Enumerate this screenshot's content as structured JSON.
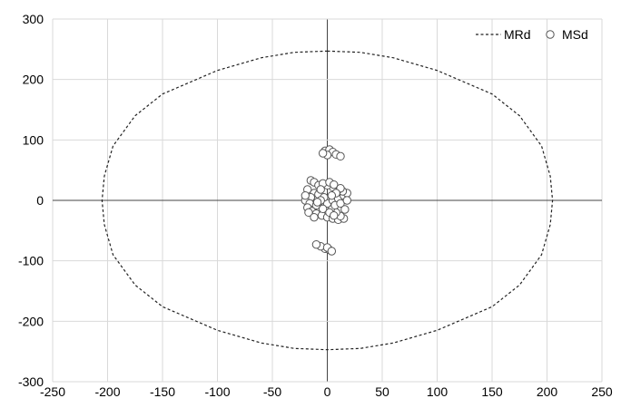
{
  "chart_data": {
    "type": "scatter",
    "title": "",
    "xlabel": "",
    "ylabel": "",
    "xlim": [
      -250,
      250
    ],
    "ylim": [
      -300,
      300
    ],
    "x_ticks": [
      -250,
      -200,
      -150,
      -100,
      -50,
      0,
      50,
      100,
      150,
      200,
      250
    ],
    "y_ticks": [
      -300,
      -200,
      -100,
      0,
      100,
      200,
      300
    ],
    "grid": true,
    "legend_position": "top-right",
    "series": [
      {
        "name": "MRd",
        "style": "dashed-line",
        "color": "#222222",
        "points": [
          [
            0,
            247
          ],
          [
            30,
            245
          ],
          [
            60,
            236
          ],
          [
            100,
            215
          ],
          [
            150,
            176
          ],
          [
            175,
            140
          ],
          [
            195,
            90
          ],
          [
            203,
            40
          ],
          [
            205,
            0
          ],
          [
            203,
            -40
          ],
          [
            195,
            -90
          ],
          [
            175,
            -140
          ],
          [
            150,
            -176
          ],
          [
            100,
            -215
          ],
          [
            60,
            -236
          ],
          [
            30,
            -245
          ],
          [
            0,
            -247
          ],
          [
            -30,
            -245
          ],
          [
            -60,
            -236
          ],
          [
            -100,
            -215
          ],
          [
            -150,
            -176
          ],
          [
            -175,
            -140
          ],
          [
            -195,
            -90
          ],
          [
            -203,
            -40
          ],
          [
            -205,
            0
          ],
          [
            -203,
            40
          ],
          [
            -195,
            90
          ],
          [
            -175,
            140
          ],
          [
            -150,
            176
          ],
          [
            -100,
            215
          ],
          [
            -60,
            236
          ],
          [
            -30,
            245
          ],
          [
            0,
            247
          ]
        ]
      },
      {
        "name": "MSd",
        "style": "hollow-circle",
        "color": "#555555",
        "points": [
          [
            -2,
            82
          ],
          [
            2,
            84
          ],
          [
            5,
            80
          ],
          [
            8,
            76
          ],
          [
            12,
            73
          ],
          [
            0,
            75
          ],
          [
            -4,
            78
          ],
          [
            -2,
            -80
          ],
          [
            2,
            -82
          ],
          [
            -6,
            -76
          ],
          [
            -10,
            -73
          ],
          [
            0,
            -78
          ],
          [
            4,
            -84
          ],
          [
            -15,
            33
          ],
          [
            -12,
            30
          ],
          [
            -8,
            25
          ],
          [
            -18,
            18
          ],
          [
            -12,
            12
          ],
          [
            -8,
            10
          ],
          [
            -15,
            5
          ],
          [
            -20,
            0
          ],
          [
            -16,
            -5
          ],
          [
            -10,
            -8
          ],
          [
            -18,
            -12
          ],
          [
            -14,
            -18
          ],
          [
            -10,
            -22
          ],
          [
            -5,
            -25
          ],
          [
            0,
            -28
          ],
          [
            5,
            -30
          ],
          [
            10,
            -32
          ],
          [
            15,
            -30
          ],
          [
            12,
            -26
          ],
          [
            8,
            -20
          ],
          [
            3,
            -15
          ],
          [
            -2,
            -10
          ],
          [
            0,
            -5
          ],
          [
            5,
            0
          ],
          [
            10,
            3
          ],
          [
            15,
            8
          ],
          [
            18,
            12
          ],
          [
            14,
            15
          ],
          [
            10,
            18
          ],
          [
            5,
            22
          ],
          [
            0,
            25
          ],
          [
            -4,
            28
          ],
          [
            2,
            30
          ],
          [
            6,
            26
          ],
          [
            12,
            20
          ],
          [
            8,
            12
          ],
          [
            4,
            8
          ],
          [
            -3,
            5
          ],
          [
            -6,
            0
          ],
          [
            -9,
            -3
          ],
          [
            -4,
            -14
          ],
          [
            2,
            -20
          ],
          [
            7,
            -8
          ],
          [
            12,
            -5
          ],
          [
            16,
            -15
          ],
          [
            18,
            0
          ],
          [
            -20,
            8
          ],
          [
            -17,
            -20
          ],
          [
            -12,
            -28
          ],
          [
            6,
            -25
          ],
          [
            -6,
            18
          ]
        ]
      }
    ]
  }
}
